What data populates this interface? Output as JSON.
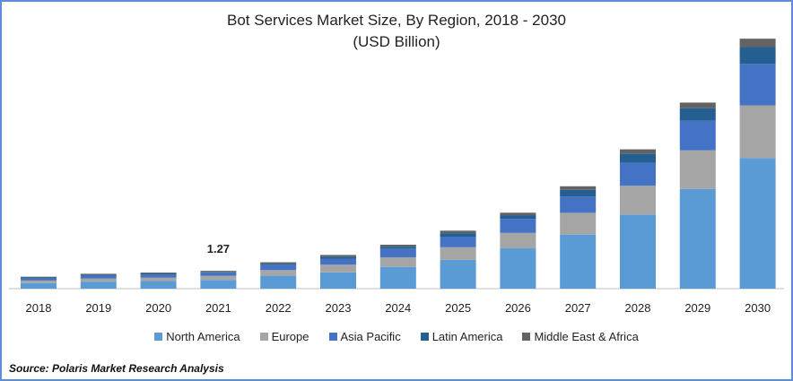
{
  "chart_data": {
    "type": "bar",
    "stacked": true,
    "title": "Bot Services Market Size, By Region, 2018 - 2030",
    "subtitle": "(USD Billion)",
    "categories": [
      "2018",
      "2019",
      "2020",
      "2021",
      "2022",
      "2023",
      "2024",
      "2025",
      "2026",
      "2027",
      "2028",
      "2029",
      "2030"
    ],
    "series": [
      {
        "name": "North America",
        "color": "#5b9bd5",
        "values": [
          0.4,
          0.5,
          0.54,
          0.62,
          0.92,
          1.16,
          1.55,
          2.05,
          2.87,
          3.85,
          5.28,
          7.1,
          9.3
        ]
      },
      {
        "name": "Europe",
        "color": "#a5a5a5",
        "values": [
          0.18,
          0.22,
          0.24,
          0.3,
          0.4,
          0.55,
          0.68,
          0.9,
          1.1,
          1.55,
          2.05,
          2.75,
          3.75
        ]
      },
      {
        "name": "Asia Pacific",
        "color": "#4472c4",
        "values": [
          0.16,
          0.2,
          0.22,
          0.24,
          0.36,
          0.43,
          0.62,
          0.75,
          1.0,
          1.17,
          1.62,
          2.1,
          2.95
        ]
      },
      {
        "name": "Latin America",
        "color": "#255e91",
        "values": [
          0.06,
          0.08,
          0.09,
          0.04,
          0.1,
          0.14,
          0.14,
          0.25,
          0.26,
          0.46,
          0.67,
          0.9,
          1.2
        ]
      },
      {
        "name": "Middle East & Africa",
        "color": "#636363",
        "values": [
          0.05,
          0.06,
          0.06,
          0.07,
          0.1,
          0.12,
          0.14,
          0.18,
          0.18,
          0.26,
          0.3,
          0.4,
          0.6
        ]
      }
    ],
    "data_labels": [
      {
        "category": "2021",
        "text": "1.27"
      }
    ],
    "ylim": [
      0,
      18
    ],
    "y_axis_visible": false,
    "grid": false,
    "legend_position": "bottom"
  },
  "source": "Source: Polaris  Market Research Analysis"
}
